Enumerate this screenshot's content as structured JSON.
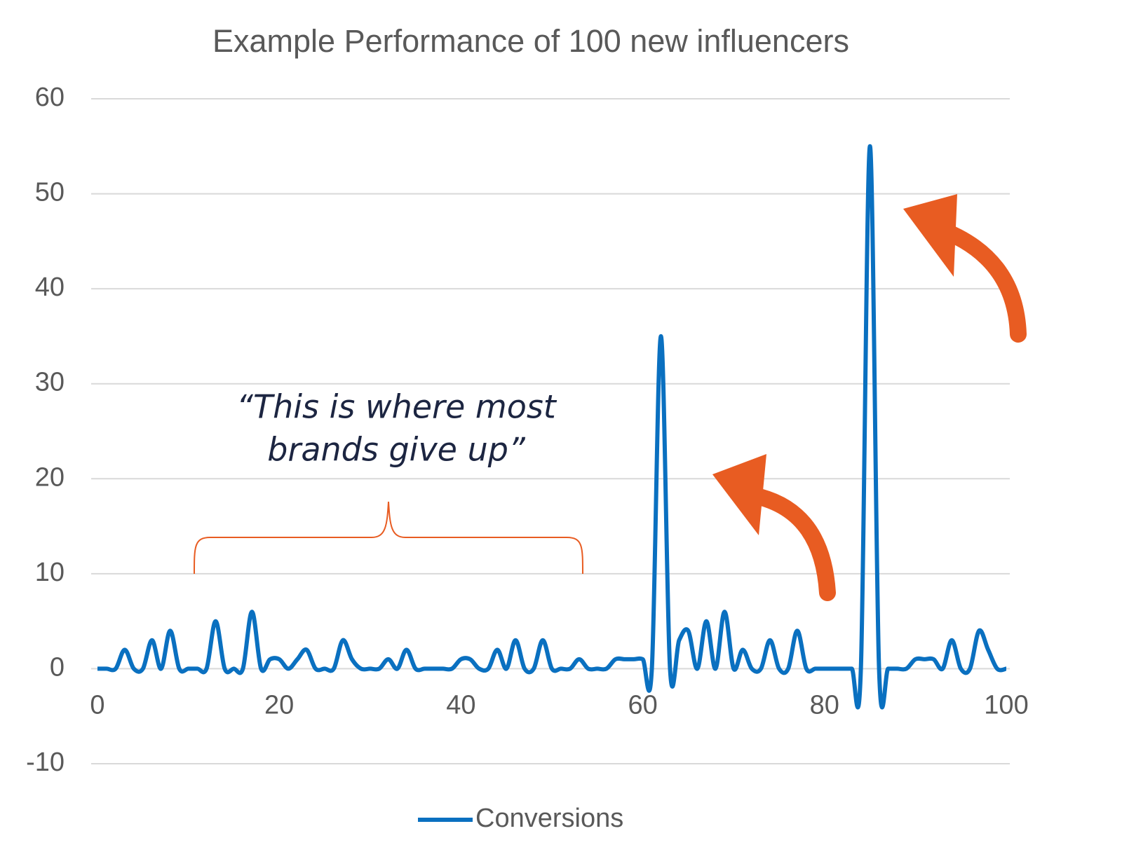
{
  "chart_data": {
    "type": "line",
    "title": "Example Performance of 100 new influencers",
    "annotation": [
      "“This is where most",
      "brands give up”"
    ],
    "x": [
      0,
      1,
      2,
      3,
      4,
      5,
      6,
      7,
      8,
      9,
      10,
      11,
      12,
      13,
      14,
      15,
      16,
      17,
      18,
      19,
      20,
      21,
      22,
      23,
      24,
      25,
      26,
      27,
      28,
      29,
      30,
      31,
      32,
      33,
      34,
      35,
      36,
      37,
      38,
      39,
      40,
      41,
      42,
      43,
      44,
      45,
      46,
      47,
      48,
      49,
      50,
      51,
      52,
      53,
      54,
      55,
      56,
      57,
      58,
      59,
      60,
      61,
      62,
      63,
      64,
      65,
      66,
      67,
      68,
      69,
      70,
      71,
      72,
      73,
      74,
      75,
      76,
      77,
      78,
      79,
      80,
      81,
      82,
      83,
      84,
      85,
      86,
      87,
      88,
      89,
      90,
      91,
      92,
      93,
      94,
      95,
      96,
      97,
      98,
      99,
      100
    ],
    "series": [
      {
        "name": "Conversions",
        "color": "#0a70c0",
        "values": [
          0,
          0,
          0,
          2,
          0,
          0,
          3,
          0,
          4,
          0,
          0,
          0,
          0,
          5,
          0,
          0,
          0,
          6,
          0,
          1,
          1,
          0,
          1,
          2,
          0,
          0,
          0,
          3,
          1,
          0,
          0,
          0,
          1,
          0,
          2,
          0,
          0,
          0,
          0,
          0,
          1,
          1,
          0,
          0,
          2,
          0,
          3,
          0,
          0,
          3,
          0,
          0,
          0,
          1,
          0,
          0,
          0,
          1,
          1,
          1,
          1,
          0,
          35,
          0,
          3,
          4,
          0,
          5,
          0,
          6,
          0,
          2,
          0,
          0,
          3,
          0,
          0,
          4,
          0,
          0,
          0,
          0,
          0,
          0,
          0,
          55,
          0,
          0,
          0,
          0,
          1,
          1,
          1,
          0,
          3,
          0,
          0,
          4,
          2,
          0,
          0
        ]
      }
    ],
    "xlim": [
      0,
      100
    ],
    "xticks": [
      0,
      20,
      40,
      60,
      80,
      100
    ],
    "ylim": [
      -10,
      60
    ],
    "yticks": [
      -10,
      0,
      10,
      20,
      30,
      40,
      50,
      60
    ],
    "grid": true,
    "legend": "bottom"
  }
}
